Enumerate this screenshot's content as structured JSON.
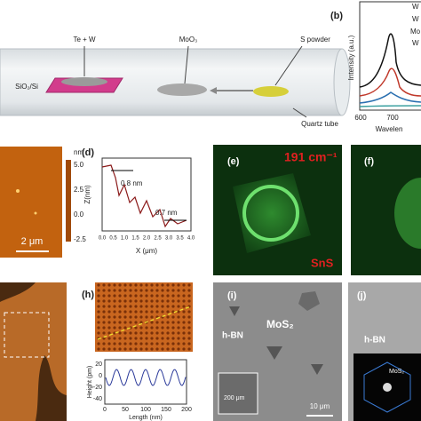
{
  "panel_a": {
    "labels": [
      "Te + W",
      "MoO₃",
      "S powder",
      "SiO₂/Si",
      "Quartz tube"
    ]
  },
  "panel_b": {
    "label": "(b)",
    "legend": [
      "W",
      "W",
      "Mo",
      "W"
    ],
    "y_axis": "Intensity (a.u.)",
    "x_ticks": [
      "600",
      "700"
    ],
    "x_axis": "Wavelen"
  },
  "panel_c": {
    "colorbar": [
      "nm",
      "5.0",
      "2.5",
      "0.0",
      "-2.5"
    ],
    "scale_bar": "2 μm"
  },
  "panel_d": {
    "label": "(d)",
    "y_axis": "Z(nm)",
    "x_axis": "X (μm)",
    "x_ticks": [
      "0.0",
      "0.5",
      "1.0",
      "1.5",
      "2.0",
      "2.5",
      "3.0",
      "3.5",
      "4.0"
    ],
    "annotations": [
      "0.8 nm",
      "0.7 nm"
    ]
  },
  "panel_e": {
    "label": "(e)",
    "shift": "191 cm⁻¹",
    "material": "SnS"
  },
  "panel_f": {
    "label": "(f)"
  },
  "panel_h": {
    "label": "(h)",
    "y_axis": "Height (pm)",
    "y_ticks": [
      "20",
      "0",
      "-20",
      "-40"
    ],
    "x_ticks": [
      "0",
      "50",
      "100",
      "150",
      "200"
    ],
    "x_axis": "Length (nm)"
  },
  "panel_i": {
    "label": "(i)",
    "texts": [
      "h-BN",
      "MoS₂",
      "200 μm",
      "10 μm"
    ]
  },
  "panel_j": {
    "label": "(j)",
    "texts": [
      "h-BN",
      "MoS₂"
    ]
  }
}
